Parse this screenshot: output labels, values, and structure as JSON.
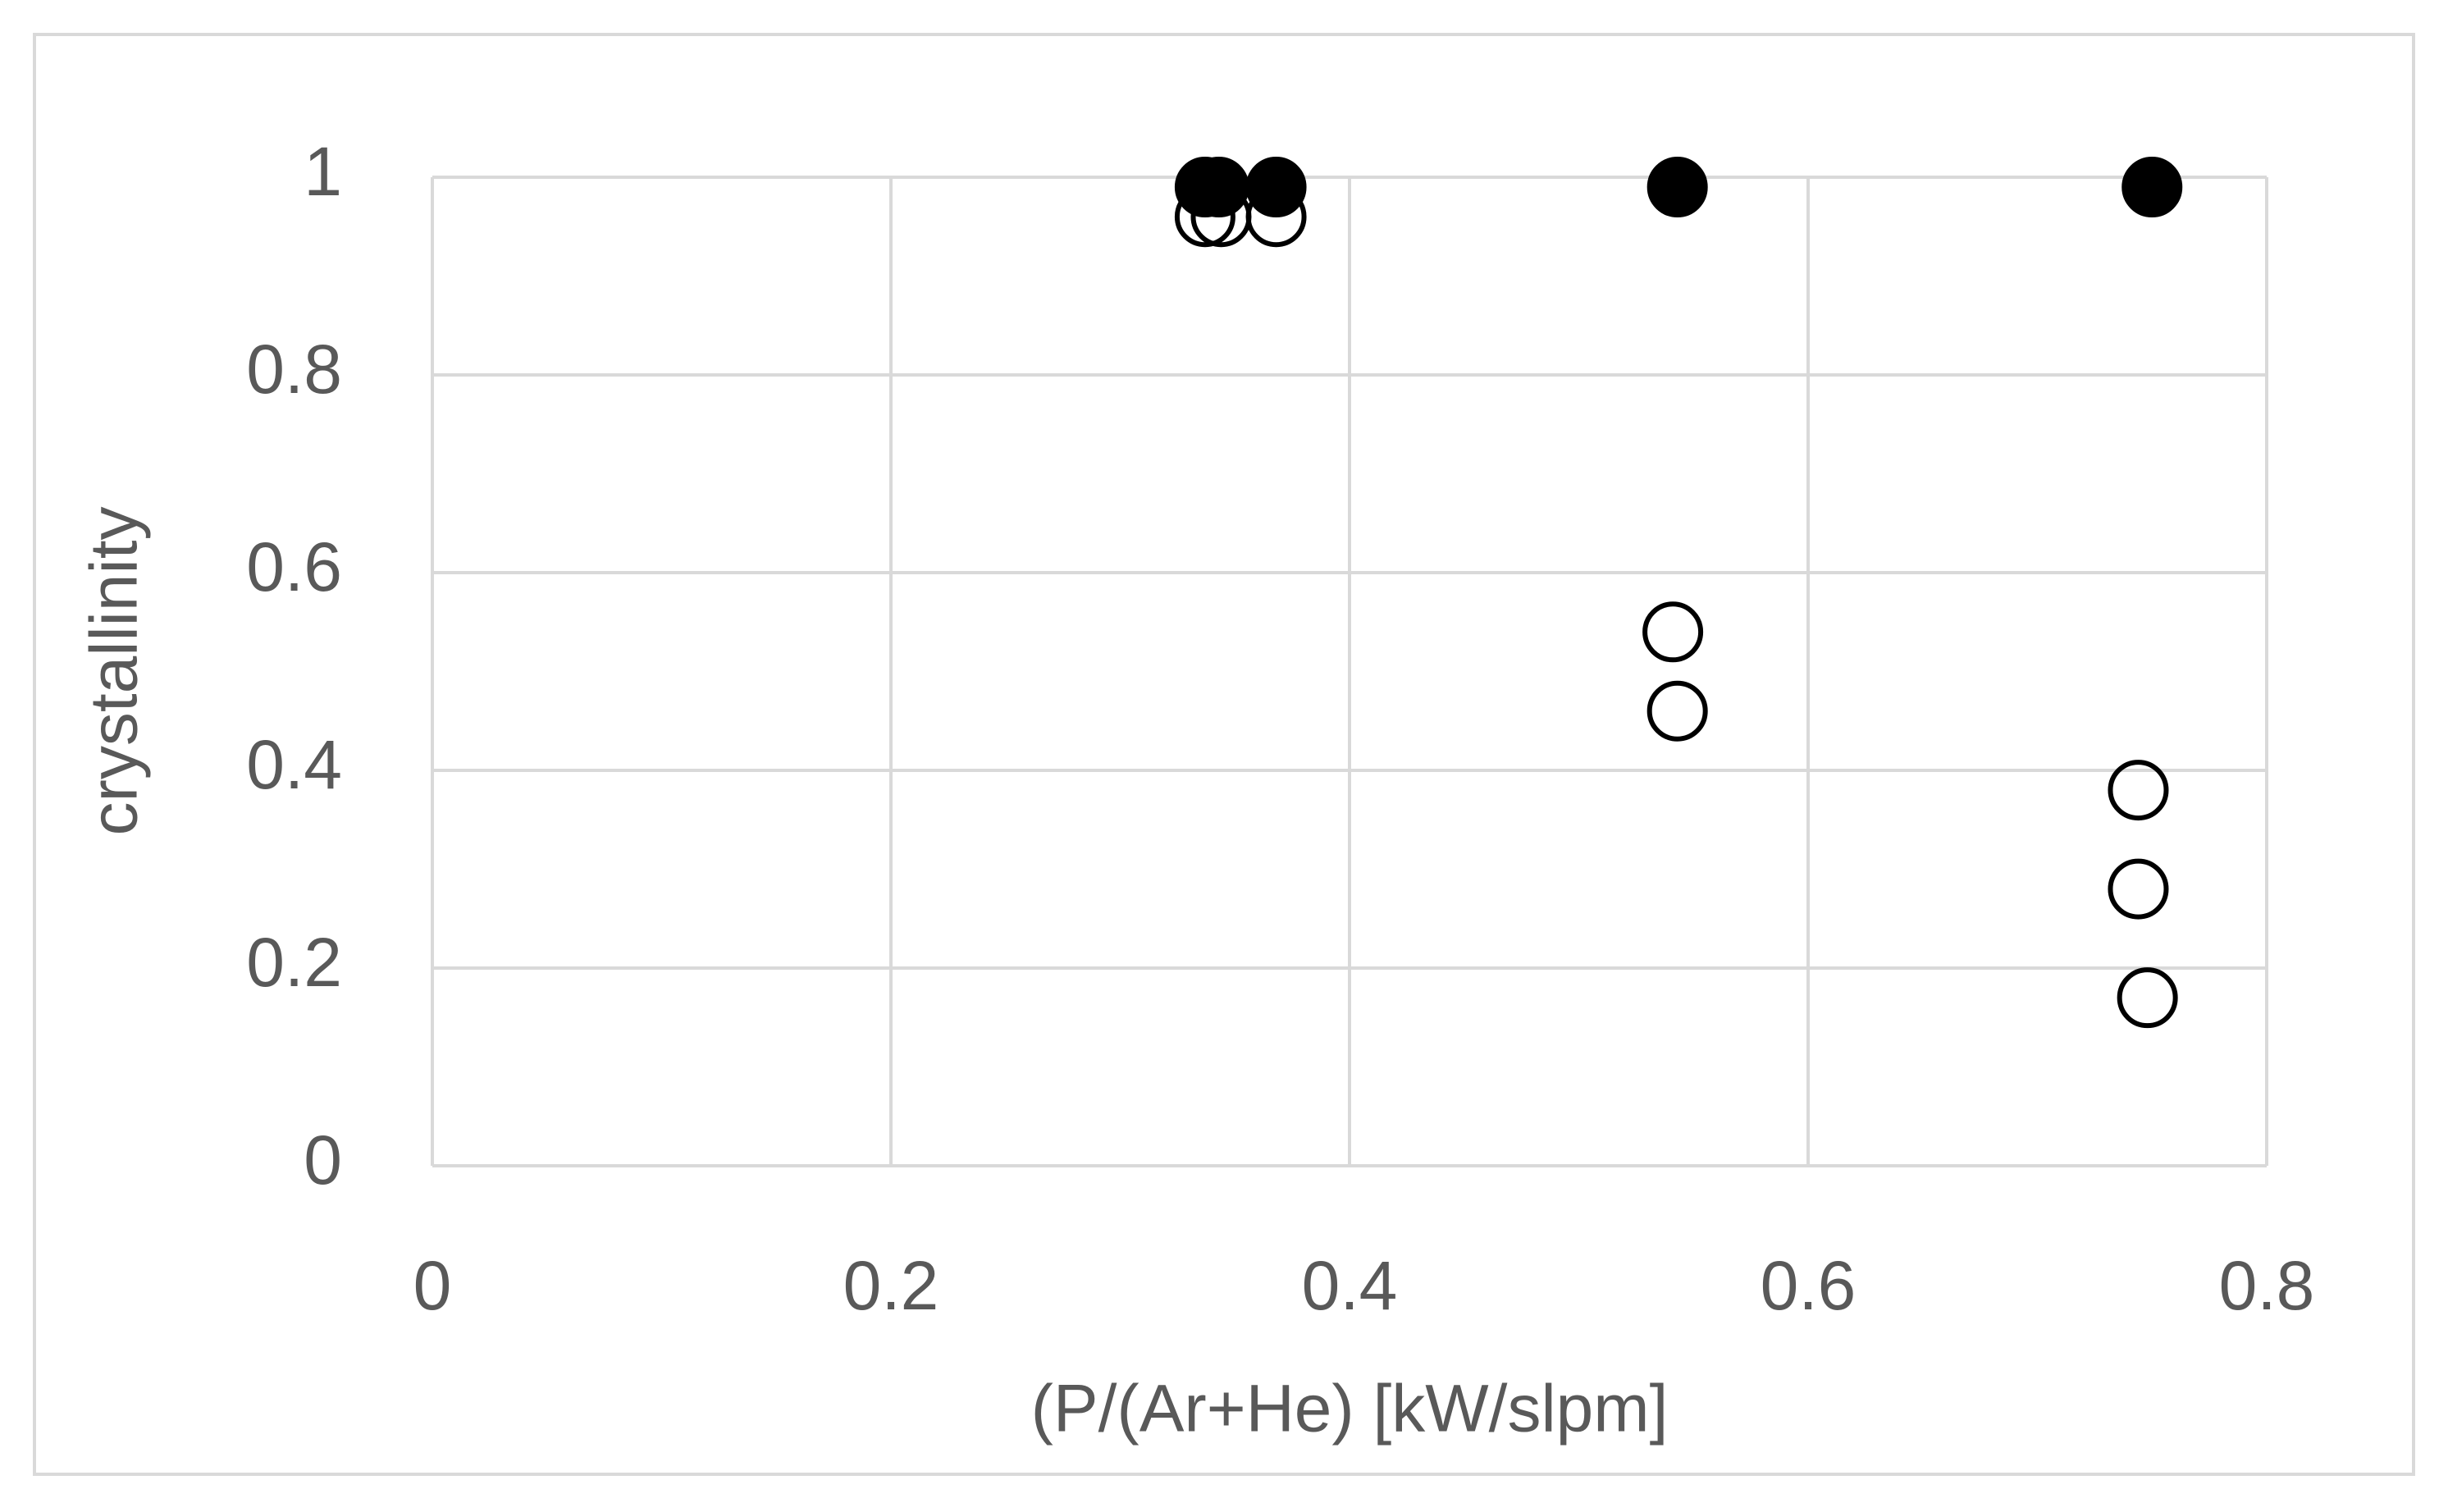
{
  "chart_data": {
    "type": "scatter",
    "x_label": "(P/(Ar+He) [kW/slpm]",
    "y_label": "crystallinity",
    "xlim": [
      0,
      0.8
    ],
    "xticks": [
      0,
      0.2,
      0.4,
      0.6,
      0.8
    ],
    "ylim": [
      0,
      1
    ],
    "yticks": [
      0,
      0.2,
      0.4,
      0.6,
      0.8,
      1
    ],
    "grid": true,
    "series": [
      {
        "color": "#000000",
        "marker": "filled-circle",
        "x": [
          0.337,
          0.343,
          0.368,
          0.543,
          0.75
        ],
        "values": [
          0.99,
          0.99,
          0.99,
          0.99,
          0.99
        ]
      },
      {
        "color": "#000000",
        "marker": "open-circle",
        "x": [
          0.337,
          0.344,
          0.368,
          0.541,
          0.543,
          0.744,
          0.744,
          0.748
        ],
        "values": [
          0.96,
          0.96,
          0.96,
          0.54,
          0.46,
          0.38,
          0.28,
          0.17
        ]
      }
    ]
  }
}
